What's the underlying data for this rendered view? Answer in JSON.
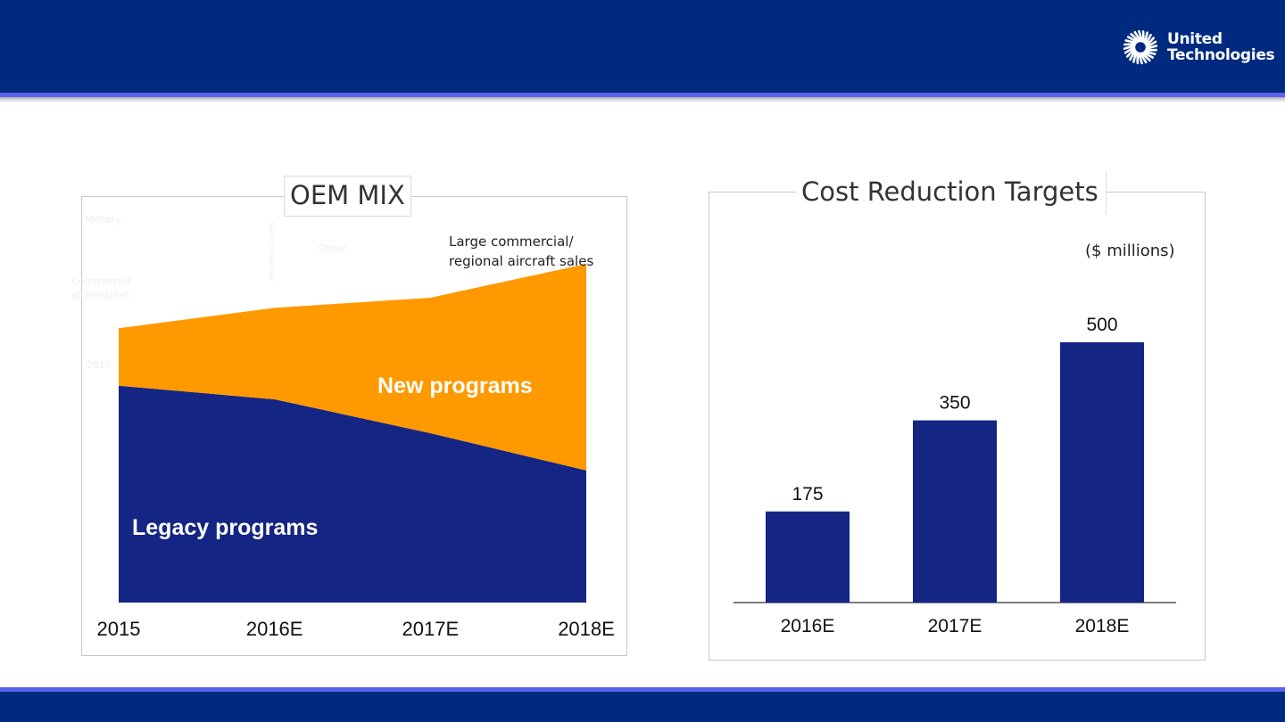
{
  "brand": {
    "line1": "United",
    "line2": "Technologies",
    "logo_icon": "sunburst-icon"
  },
  "colors": {
    "navy": "#002a80",
    "accent_line": "#5a63f0",
    "legacy": "#152584",
    "new": "#ff9900",
    "bar": "#152584"
  },
  "oem_mix": {
    "title": "OEM MIX",
    "note": [
      "Large commercial/",
      "regional aircraft sales"
    ],
    "faint_labels": [
      "Military",
      "Other",
      "Commercial aftermarket",
      "Aerostructures",
      "2015"
    ]
  },
  "cost": {
    "title": "Cost Reduction Targets",
    "unit": "($ millions)"
  },
  "chart_data": [
    {
      "type": "area",
      "title": "OEM MIX",
      "categories": [
        "2015",
        "2016E",
        "2017E",
        "2018E"
      ],
      "series": [
        {
          "name": "Legacy programs",
          "values": [
            0.64,
            0.6,
            0.5,
            0.39
          ]
        },
        {
          "name": "New programs",
          "values": [
            0.17,
            0.27,
            0.4,
            0.61
          ]
        }
      ],
      "stacked": true,
      "ylim": [
        0,
        1.0
      ],
      "grid": false
    },
    {
      "type": "bar",
      "title": "Cost Reduction Targets",
      "categories": [
        "2016E",
        "2017E",
        "2018E"
      ],
      "values": [
        175,
        350,
        500
      ],
      "data_labels": [
        "175",
        "350",
        "500"
      ],
      "ylabel": "($ millions)",
      "ylim": [
        0,
        500
      ],
      "grid": false
    }
  ]
}
